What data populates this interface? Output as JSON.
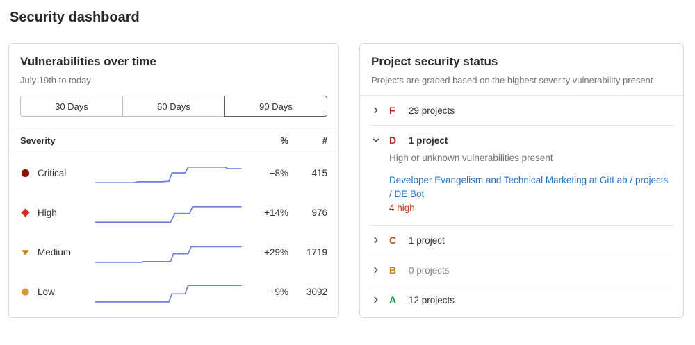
{
  "page_title": "Security dashboard",
  "vuln_panel": {
    "title": "Vulnerabilities over time",
    "date_range": "July 19th to today",
    "range_buttons": [
      {
        "label": "30 Days",
        "selected": false
      },
      {
        "label": "60 Days",
        "selected": false
      },
      {
        "label": "90 Days",
        "selected": true
      }
    ],
    "table": {
      "header_severity": "Severity",
      "header_percent": "%",
      "header_count": "#",
      "sparkline_color": "#6b7ddf",
      "rows": [
        {
          "severity": "Critical",
          "icon": "severity-critical-icon",
          "shape": "circle",
          "color": "#8d1300",
          "percent": "+8%",
          "count": "415",
          "sparkline": [
            [
              1,
              90
            ],
            [
              27,
              90
            ],
            [
              30,
              86
            ],
            [
              47,
              86
            ],
            [
              50,
              84
            ],
            [
              51,
              84
            ],
            [
              53,
              47
            ],
            [
              62,
              47
            ],
            [
              64,
              22
            ],
            [
              89,
              22
            ],
            [
              91,
              29
            ],
            [
              100,
              29
            ]
          ]
        },
        {
          "severity": "High",
          "icon": "severity-high-icon",
          "shape": "diamond",
          "color": "#d62d1f",
          "percent": "+14%",
          "count": "976",
          "sparkline": [
            [
              1,
              90
            ],
            [
              52,
              90
            ],
            [
              55,
              52
            ],
            [
              65,
              52
            ],
            [
              67,
              22
            ],
            [
              100,
              22
            ]
          ]
        },
        {
          "severity": "Medium",
          "icon": "severity-medium-icon",
          "shape": "triangle-down",
          "color": "#c17d10",
          "percent": "+29%",
          "count": "1719",
          "sparkline": [
            [
              1,
              92
            ],
            [
              32,
              92
            ],
            [
              34,
              89
            ],
            [
              52,
              89
            ],
            [
              54,
              55
            ],
            [
              64,
              55
            ],
            [
              66,
              24
            ],
            [
              100,
              24
            ]
          ]
        },
        {
          "severity": "Low",
          "icon": "severity-low-icon",
          "shape": "circle",
          "color": "#d99530",
          "percent": "+9%",
          "count": "3092",
          "sparkline": [
            [
              1,
              92
            ],
            [
              51,
              92
            ],
            [
              53,
              57
            ],
            [
              62,
              57
            ],
            [
              64,
              20
            ],
            [
              100,
              20
            ]
          ]
        }
      ]
    }
  },
  "status_panel": {
    "title": "Project security status",
    "subtitle": "Projects are graded based on the highest severity vulnerability present",
    "grades": [
      {
        "grade": "F",
        "color": "#b2271d",
        "count_label": "29 projects",
        "expanded": false,
        "muted": false
      },
      {
        "grade": "D",
        "color": "#b2271d",
        "count_label": "1 project",
        "expanded": true,
        "muted": false,
        "description": "High or unknown vulnerabilities present",
        "project_link": "Developer Evangelism and Technical Marketing at GitLab / projects / DE Bot",
        "vuln_badge": "4 high",
        "badge_color": "#c0341d"
      },
      {
        "grade": "C",
        "color": "#b3571c",
        "count_label": "1 project",
        "expanded": false,
        "muted": false
      },
      {
        "grade": "B",
        "color": "#bf8018",
        "count_label": "0 projects",
        "expanded": false,
        "muted": true
      },
      {
        "grade": "A",
        "color": "#1f9251",
        "count_label": "12 projects",
        "expanded": false,
        "muted": false
      }
    ]
  }
}
